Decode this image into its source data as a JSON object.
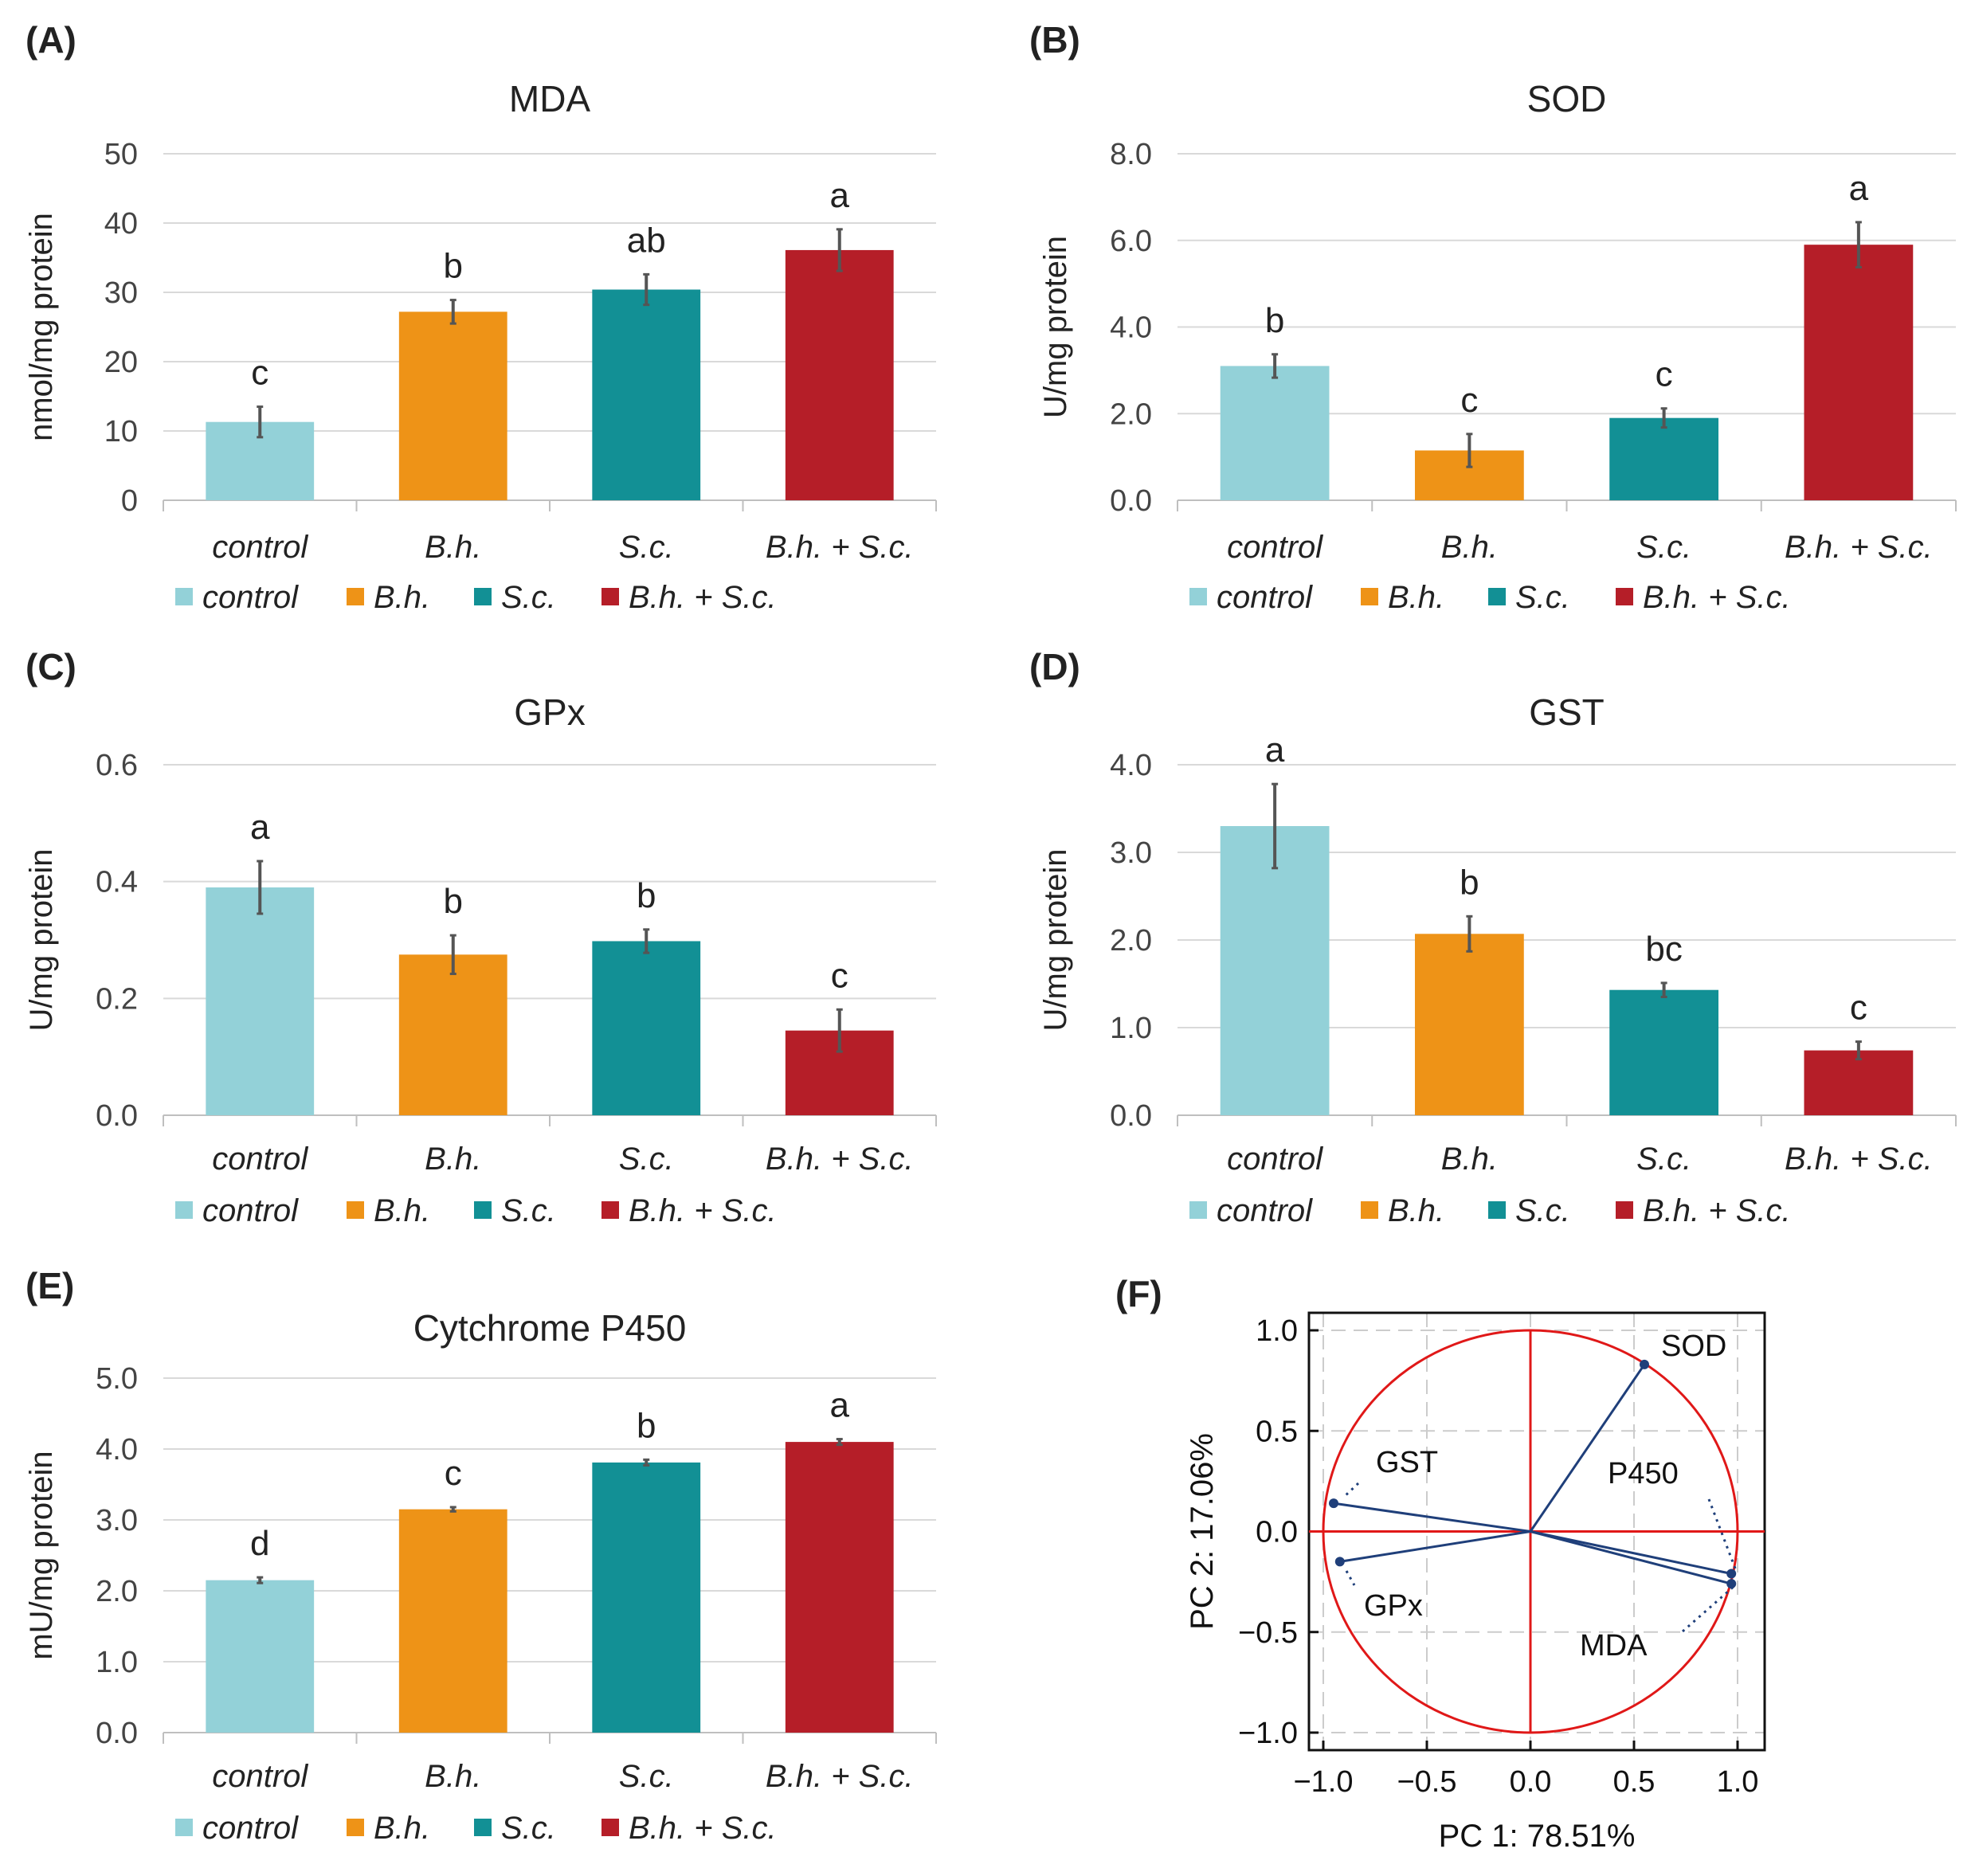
{
  "colors": {
    "control": "#93D1D8",
    "bh": "#EE9317",
    "sc": "#129095",
    "bhsc": "#B51E28",
    "grid": "#D9D9D9",
    "axis": "#BFBFBF",
    "errorbar": "#555555",
    "circle": "#E01818",
    "vector": "#1F3F7A"
  },
  "legend": [
    {
      "label": "control",
      "color": "#93D1D8"
    },
    {
      "label": "B.h.",
      "color": "#EE9317"
    },
    {
      "label": "S.c.",
      "color": "#129095"
    },
    {
      "label": "B.h. + S.c.",
      "color": "#B51E28"
    }
  ],
  "chart_data": [
    {
      "panel": "(A)",
      "type": "bar",
      "title": "MDA",
      "ylabel": "nmol/mg protein",
      "categories": [
        "control",
        "B.h.",
        "S.c.",
        "B.h. + S.c."
      ],
      "values": [
        11.3,
        27.2,
        30.4,
        36.1
      ],
      "errors": [
        2.2,
        1.7,
        2.2,
        3.0
      ],
      "significance": [
        "c",
        "b",
        "ab",
        "a"
      ],
      "ylim": [
        0,
        50
      ],
      "ticks": [
        0,
        10,
        20,
        30,
        40,
        50
      ],
      "tick_labels": [
        "0",
        "10",
        "20",
        "30",
        "40",
        "50"
      ]
    },
    {
      "panel": "(B)",
      "type": "bar",
      "title": "SOD",
      "ylabel": "U/mg protein",
      "categories": [
        "control",
        "B.h.",
        "S.c.",
        "B.h. + S.c."
      ],
      "values": [
        3.1,
        1.15,
        1.9,
        5.9
      ],
      "errors": [
        0.27,
        0.38,
        0.22,
        0.52
      ],
      "significance": [
        "b",
        "c",
        "c",
        "a"
      ],
      "ylim": [
        0,
        8
      ],
      "ticks": [
        0,
        2,
        4,
        6,
        8
      ],
      "tick_labels": [
        "0.0",
        "2.0",
        "4.0",
        "6.0",
        "8.0"
      ]
    },
    {
      "panel": "(C)",
      "type": "bar",
      "title": "GPx",
      "ylabel": "U/mg protein",
      "categories": [
        "control",
        "B.h.",
        "S.c.",
        "B.h. + S.c."
      ],
      "values": [
        0.39,
        0.275,
        0.298,
        0.145
      ],
      "errors": [
        0.045,
        0.033,
        0.02,
        0.036
      ],
      "significance": [
        "a",
        "b",
        "b",
        "c"
      ],
      "ylim": [
        0,
        0.6
      ],
      "ticks": [
        0,
        0.2,
        0.4,
        0.6
      ],
      "tick_labels": [
        "0.0",
        "0.2",
        "0.4",
        "0.6"
      ]
    },
    {
      "panel": "(D)",
      "type": "bar",
      "title": "GST",
      "ylabel": "U/mg protein",
      "categories": [
        "control",
        "B.h.",
        "S.c.",
        "B.h. + S.c."
      ],
      "values": [
        3.3,
        2.07,
        1.43,
        0.74
      ],
      "errors": [
        0.48,
        0.2,
        0.08,
        0.1
      ],
      "significance": [
        "a",
        "b",
        "bc",
        "c"
      ],
      "ylim": [
        0,
        4
      ],
      "ticks": [
        0,
        1,
        2,
        3,
        4
      ],
      "tick_labels": [
        "0.0",
        "1.0",
        "2.0",
        "3.0",
        "4.0"
      ]
    },
    {
      "panel": "(E)",
      "type": "bar",
      "title": "Cytchrome P450",
      "ylabel": "mU/mg protein",
      "categories": [
        "control",
        "B.h.",
        "S.c.",
        "B.h. + S.c."
      ],
      "values": [
        2.15,
        3.15,
        3.81,
        4.1
      ],
      "errors": [
        0.04,
        0.03,
        0.04,
        0.04
      ],
      "significance": [
        "d",
        "c",
        "b",
        "a"
      ],
      "ylim": [
        0,
        5
      ],
      "ticks": [
        0,
        1,
        2,
        3,
        4,
        5
      ],
      "tick_labels": [
        "0.0",
        "1.0",
        "2.0",
        "3.0",
        "4.0",
        "5.0"
      ]
    },
    {
      "panel": "(F)",
      "type": "scatter",
      "subtype": "pca-loading",
      "xlabel": "PC 1: 78.51%",
      "ylabel": "PC 2: 17.06%",
      "xlim": [
        -1.0,
        1.0
      ],
      "ylim": [
        -1.0,
        1.0
      ],
      "ticks": [
        -1.0,
        -0.5,
        0.0,
        0.5,
        1.0
      ],
      "tick_labels": [
        "−1.0",
        "−0.5",
        "0.0",
        "0.5",
        "1.0"
      ],
      "points": [
        {
          "label": "SOD",
          "x": 0.55,
          "y": 0.83
        },
        {
          "label": "GST",
          "x": -0.95,
          "y": 0.14
        },
        {
          "label": "GPx",
          "x": -0.92,
          "y": -0.15
        },
        {
          "label": "P450",
          "x": 0.97,
          "y": -0.21
        },
        {
          "label": "MDA",
          "x": 0.97,
          "y": -0.26
        }
      ]
    }
  ]
}
